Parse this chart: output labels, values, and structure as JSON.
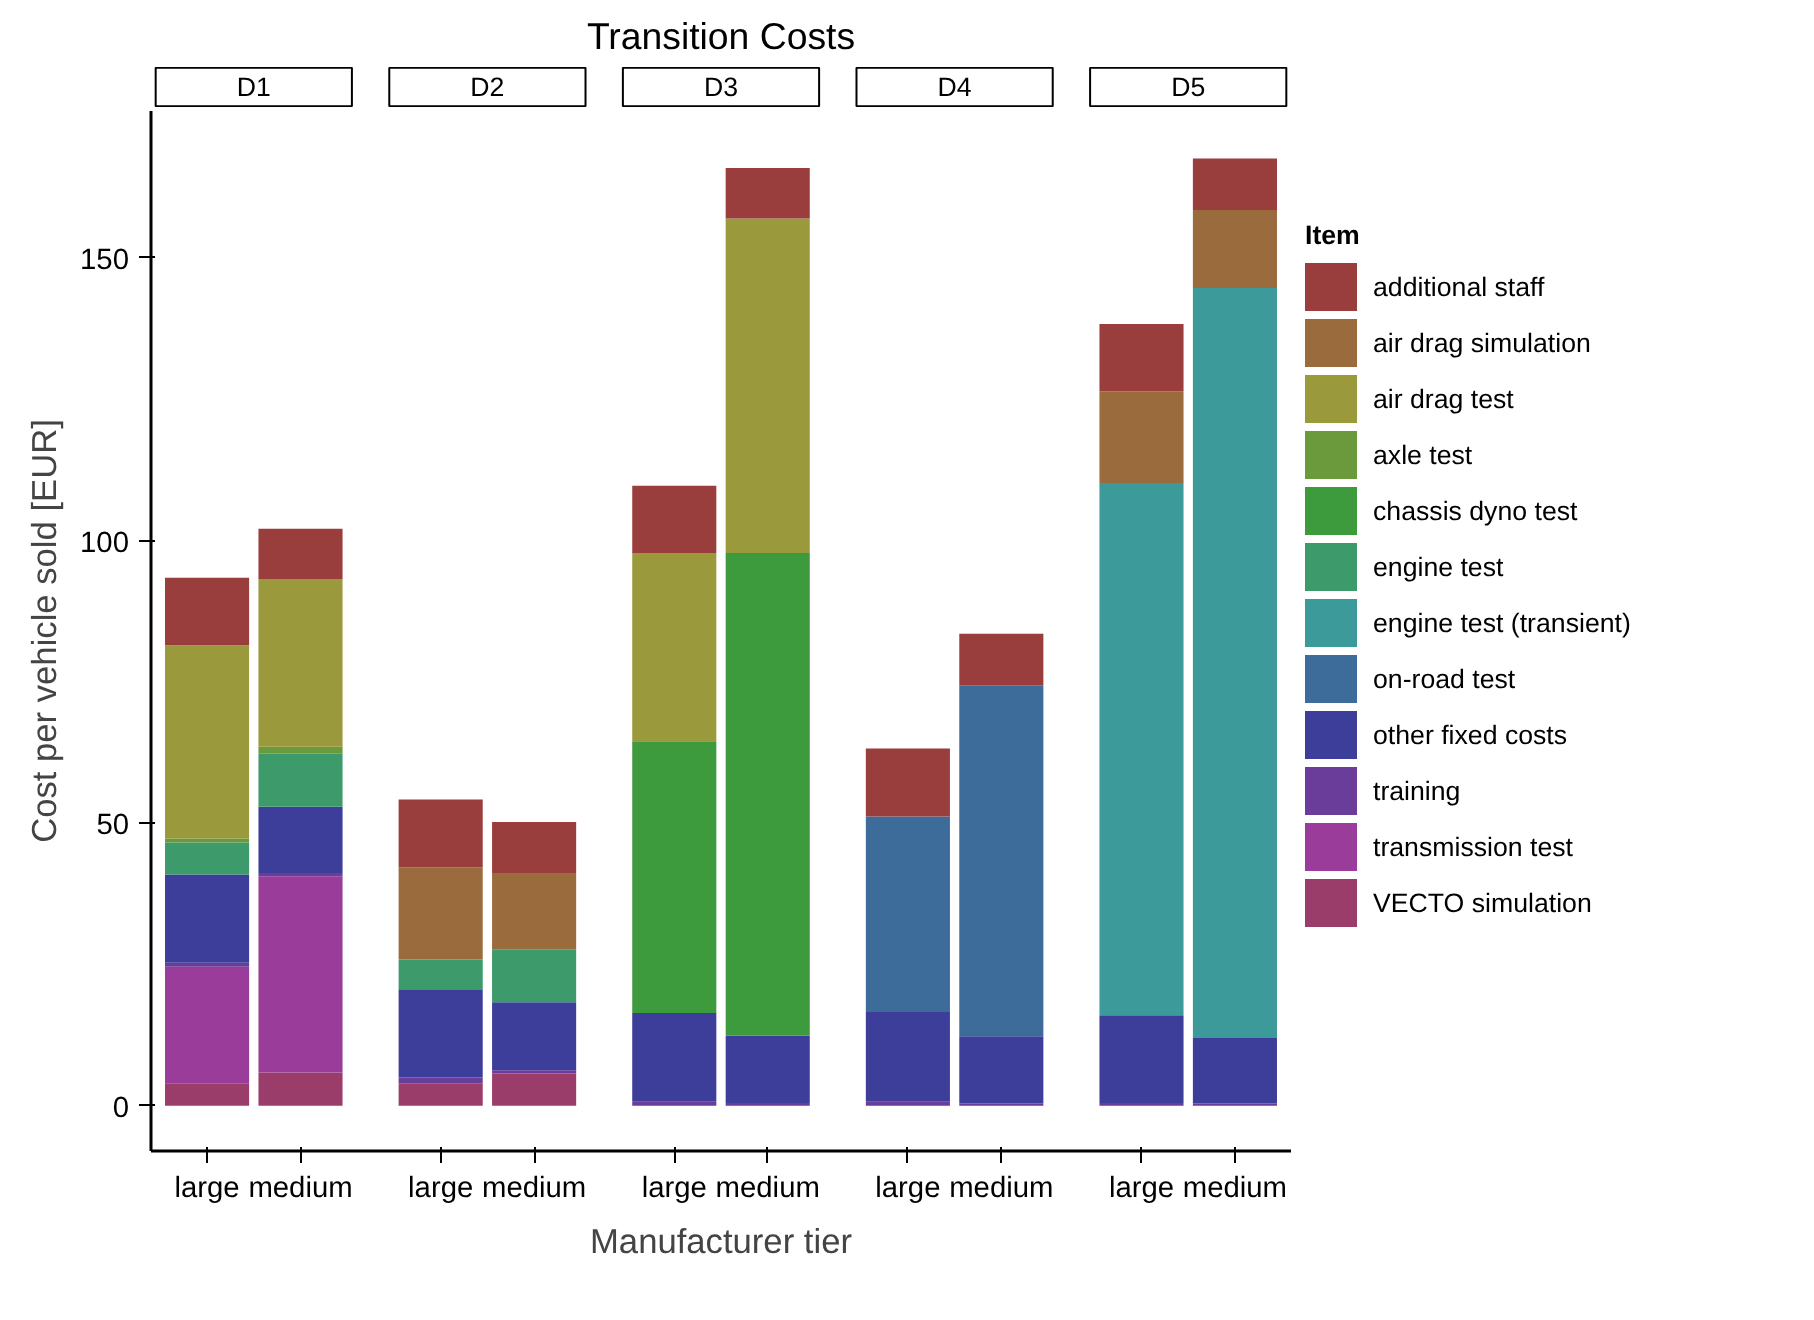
{
  "chart_data": {
    "type": "bar",
    "stacked": true,
    "title": "Transition Costs",
    "xlabel": "Manufacturer tier",
    "ylabel": "Cost per vehicle sold [EUR]",
    "annotations": [
      "D1",
      "D2",
      "D3",
      "D4",
      "D5"
    ],
    "categories": [
      "large",
      "medium",
      "large",
      "medium",
      "large",
      "medium",
      "large",
      "medium",
      "large",
      "medium"
    ],
    "ylim": [
      -8,
      176
    ],
    "yticks": [
      0,
      50,
      100,
      150
    ],
    "legend": "right",
    "legend_title": "Item",
    "series": [
      {
        "name": "VECTO simulation",
        "color": "#9a3d6b",
        "values": [
          4.0,
          5.9,
          4.0,
          5.7,
          null,
          null,
          null,
          null,
          null,
          null
        ]
      },
      {
        "name": "transmission test",
        "color": "#9a3d9a",
        "values": [
          20.6,
          34.7,
          null,
          null,
          null,
          null,
          null,
          null,
          null,
          null
        ]
      },
      {
        "name": "training",
        "color": "#6b3d9a",
        "values": [
          0.7,
          0.6,
          1.0,
          0.6,
          0.7,
          0.5,
          0.7,
          0.4,
          0.5,
          0.4
        ]
      },
      {
        "name": "other fixed costs",
        "color": "#3d3d9a",
        "values": [
          15.6,
          11.7,
          15.6,
          12.0,
          15.7,
          11.9,
          15.9,
          11.9,
          15.5,
          11.6
        ]
      },
      {
        "name": "on-road test",
        "color": "#3d6b9a",
        "values": [
          null,
          null,
          null,
          null,
          null,
          null,
          34.6,
          62.1,
          null,
          null
        ]
      },
      {
        "name": "engine test (transient)",
        "color": "#3d9a9a",
        "values": [
          null,
          null,
          null,
          null,
          null,
          null,
          null,
          null,
          94.2,
          132.7
        ]
      },
      {
        "name": "engine test",
        "color": "#3d9a6b",
        "values": [
          5.7,
          9.4,
          5.3,
          9.4,
          null,
          null,
          null,
          null,
          null,
          null
        ]
      },
      {
        "name": "chassis dyno test",
        "color": "#3d9a3d",
        "values": [
          null,
          null,
          null,
          null,
          48.1,
          85.4,
          null,
          null,
          null,
          null
        ]
      },
      {
        "name": "axle test",
        "color": "#6b9a3d",
        "values": [
          0.7,
          1.2,
          null,
          null,
          null,
          null,
          null,
          null,
          null,
          null
        ]
      },
      {
        "name": "air drag test",
        "color": "#9a9a3d",
        "values": [
          34.2,
          29.6,
          null,
          null,
          33.3,
          59.2,
          null,
          null,
          null,
          null
        ]
      },
      {
        "name": "air drag simulation",
        "color": "#9a6b3d",
        "values": [
          null,
          null,
          16.3,
          13.5,
          null,
          null,
          null,
          null,
          16.2,
          13.8
        ]
      },
      {
        "name": "additional staff",
        "color": "#9a3d3d",
        "values": [
          11.9,
          9.0,
          12.0,
          9.0,
          11.9,
          8.9,
          12.0,
          9.1,
          11.9,
          9.1
        ]
      }
    ]
  }
}
